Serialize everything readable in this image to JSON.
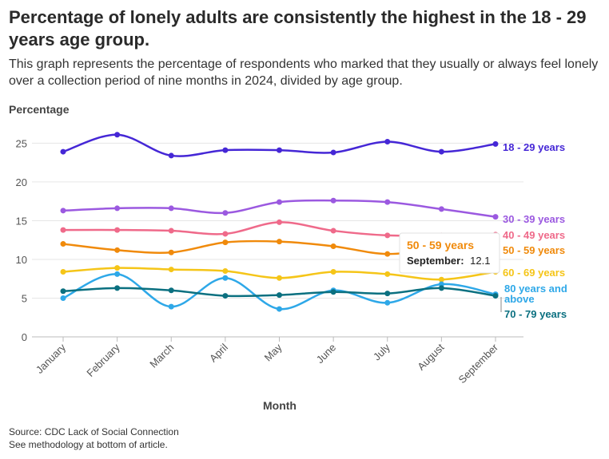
{
  "header": {
    "title": "Percentage of lonely adults are consistently the highest in the 18 - 29 years age group.",
    "subtitle": "This graph represents the percentage of respondents who marked that they usually or always feel lonely over a collection period of nine months in 2024, divided by age group."
  },
  "footer": {
    "source": "Source: CDC Lack of Social Connection",
    "methodology": "See methodology at bottom of article."
  },
  "tooltip": {
    "series": "50 - 59 years",
    "month_label": "September:",
    "value": "12.1",
    "color": "#f08a0b"
  },
  "chart_data": {
    "type": "line",
    "title": "Percentage of lonely adults are consistently the highest in the 18 - 29 years age group.",
    "ylabel": "Percentage",
    "xlabel": "Month",
    "ylim": [
      0,
      27
    ],
    "yticks": [
      0,
      5,
      10,
      15,
      20,
      25
    ],
    "grid": true,
    "legend": "right-end labels",
    "categories": [
      "January",
      "February",
      "March",
      "April",
      "May",
      "June",
      "July",
      "August",
      "September"
    ],
    "series": [
      {
        "name": "18 - 29 years",
        "color": "#4527d6",
        "values": [
          23.9,
          26.1,
          23.4,
          24.1,
          24.1,
          23.8,
          25.2,
          23.9,
          24.9
        ]
      },
      {
        "name": "30 - 39 years",
        "color": "#9b59e0",
        "values": [
          16.3,
          16.6,
          16.6,
          16.0,
          17.4,
          17.6,
          17.4,
          16.5,
          15.5
        ]
      },
      {
        "name": "40 - 49 years",
        "color": "#ef6a8a",
        "values": [
          13.8,
          13.8,
          13.7,
          13.3,
          14.8,
          13.7,
          13.1,
          13.1,
          13.2
        ]
      },
      {
        "name": "50 - 59 years",
        "color": "#f08a0b",
        "values": [
          12.0,
          11.2,
          10.9,
          12.2,
          12.3,
          11.7,
          10.7,
          11.5,
          12.1
        ]
      },
      {
        "name": "60 - 69 years",
        "color": "#f5c518",
        "values": [
          8.4,
          8.9,
          8.7,
          8.5,
          7.6,
          8.4,
          8.1,
          7.4,
          8.4
        ]
      },
      {
        "name": "80 years and above",
        "color": "#2ea8e8",
        "values": [
          5.0,
          8.1,
          3.9,
          7.6,
          3.6,
          6.0,
          4.4,
          6.8,
          5.5
        ]
      },
      {
        "name": "70 - 79 years",
        "color": "#0b7080",
        "values": [
          5.9,
          6.3,
          6.0,
          5.3,
          5.4,
          5.8,
          5.6,
          6.3,
          5.3
        ]
      }
    ]
  }
}
